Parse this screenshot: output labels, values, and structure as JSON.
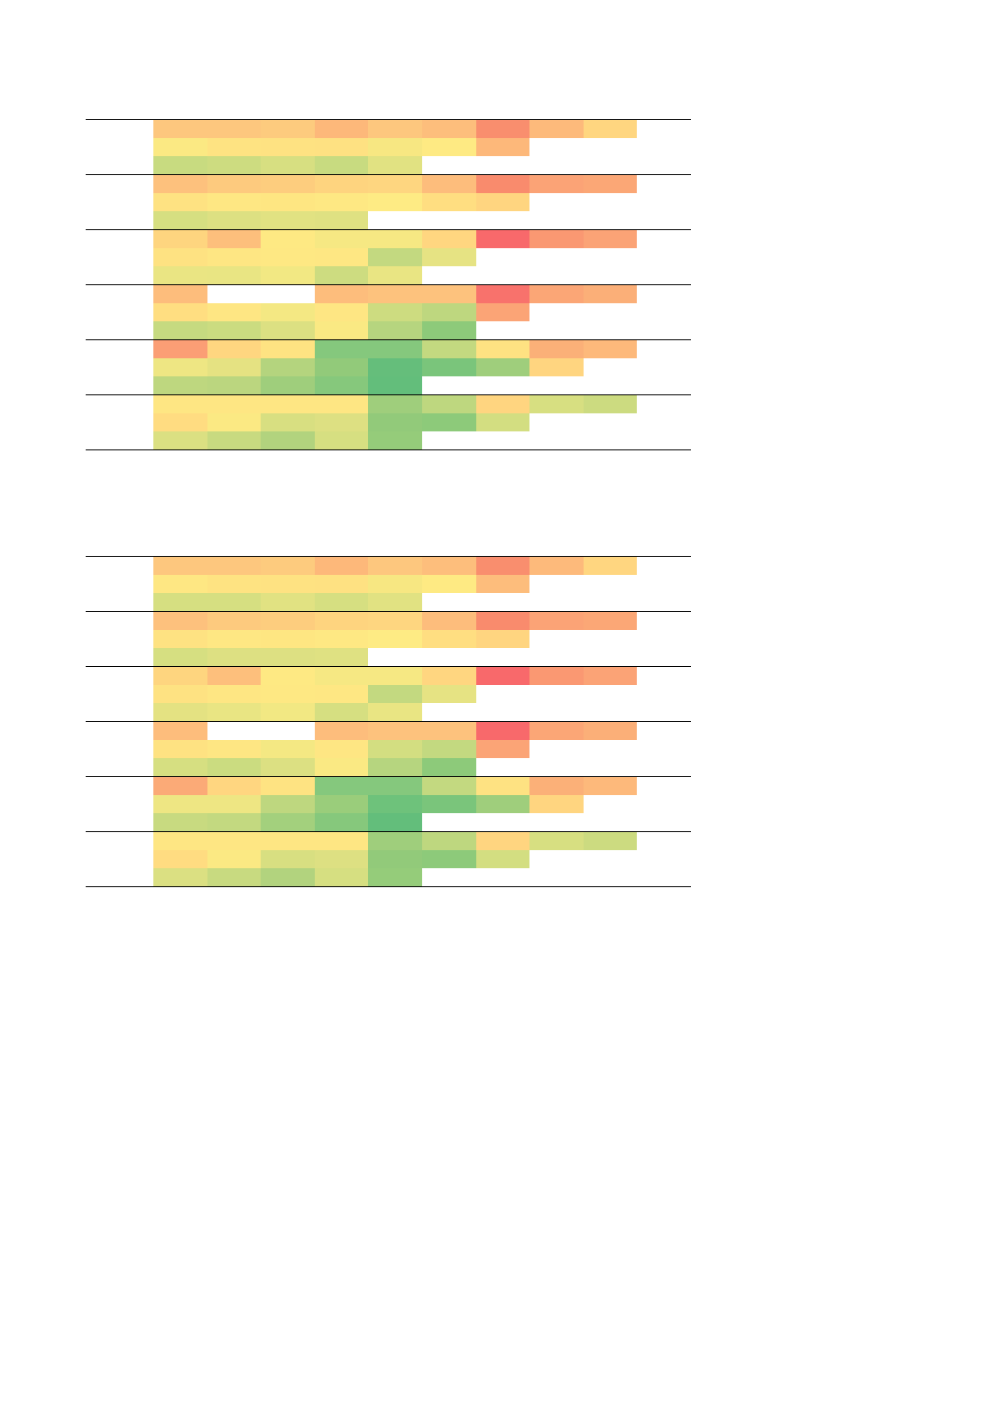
{
  "tables": [
    {
      "id": "top",
      "groups": [
        {
          "rows": [
            [
              "#FDC77E",
              "#FDC77E",
              "#FDCB7E",
              "#FDB87A",
              "#FDC77E",
              "#FDBE7C",
              "#F98E6E",
              "#FDBA7B",
              "#FFD680"
            ],
            [
              "#FBE983",
              "#FEE382",
              "#FEE282",
              "#FEE182",
              "#F7E782",
              "#FEEA83",
              "#FDB87A"
            ],
            [
              "#C8DB80",
              "#CDDC80",
              "#D7DF81",
              "#C8DB80",
              "#E1E282"
            ]
          ]
        },
        {
          "rows": [
            [
              "#FDC17D",
              "#FDCA7E",
              "#FDCD7E",
              "#FED47F",
              "#FED680",
              "#FDBD7C",
              "#F98B6D",
              "#FBA376",
              "#FBA776"
            ],
            [
              "#FEE282",
              "#FEE783",
              "#FEE682",
              "#FEE883",
              "#FEEB84",
              "#FFDE81",
              "#FFD580"
            ],
            [
              "#D6DF81",
              "#DDE082",
              "#E1E282",
              "#DFE182"
            ]
          ]
        },
        {
          "rows": [
            [
              "#FED57F",
              "#FDBF7C",
              "#FEE983",
              "#F6E883",
              "#F6E883",
              "#FFD680",
              "#F8696B",
              "#FA9872",
              "#FBA376"
            ],
            [
              "#FEE282",
              "#FEE683",
              "#FEE883",
              "#FEE783",
              "#C3D980",
              "#E6E383"
            ],
            [
              "#EAE583",
              "#E9E583",
              "#F2E883",
              "#CDDC80",
              "#E9E583"
            ]
          ]
        },
        {
          "rows": [
            [
              "#FDBD7C",
              null,
              null,
              "#FDBD7C",
              "#FDC27D",
              "#FDC27D",
              "#F8726C",
              "#FBA676",
              "#FBAF78"
            ],
            [
              "#FFDE81",
              "#FEE683",
              "#F4E883",
              "#FEE683",
              "#CDDC80",
              "#BED77F",
              "#FBA476"
            ],
            [
              "#C6DA80",
              "#CBDC80",
              "#DCE082",
              "#FAE983",
              "#B6D57F",
              "#8DCA7A"
            ]
          ]
        },
        {
          "rows": [
            [
              "#FB9E75",
              "#FFD680",
              "#FEE382",
              "#85C87D",
              "#85C87D",
              "#C3D980",
              "#FEE282",
              "#FBB078",
              "#FDB97B"
            ],
            [
              "#EEE683",
              "#E5E282",
              "#B4D47E",
              "#92CA7A",
              "#65BE7B",
              "#7AC57B",
              "#9FCE7C",
              "#FFD580"
            ],
            [
              "#BED77F",
              "#BBD67F",
              "#9FCE7C",
              "#86C87C",
              "#63BE7B"
            ]
          ]
        },
        {
          "rows": [
            [
              "#FEE683",
              "#FEE683",
              "#FEE683",
              "#FEE683",
              "#9FCE7C",
              "#BED77F",
              "#FFD580",
              "#D7DF81",
              "#CCDB80"
            ],
            [
              "#FFDC81",
              "#FBE983",
              "#D8DF81",
              "#DDE082",
              "#92CA7A",
              "#8DCA7A",
              "#D3DE81"
            ],
            [
              "#DBE082",
              "#C8DA80",
              "#B2D37E",
              "#D6DF81",
              "#95CC7A"
            ]
          ]
        }
      ]
    },
    {
      "id": "bottom",
      "groups": [
        {
          "rows": [
            [
              "#FDC77E",
              "#FDC77E",
              "#FDCB7E",
              "#FDB87A",
              "#FDC77E",
              "#FDBE7C",
              "#F98E6E",
              "#FDBA7B",
              "#FFD680"
            ],
            [
              "#FEE783",
              "#FEE382",
              "#FEE282",
              "#FEE182",
              "#F7E782",
              "#FEEA83",
              "#FDBD7C"
            ],
            [
              "#D6DF81",
              "#D6DF81",
              "#E1E282",
              "#D6DF81",
              "#E1E282"
            ]
          ]
        },
        {
          "rows": [
            [
              "#FDC17D",
              "#FDCA7E",
              "#FDCD7E",
              "#FED47F",
              "#FED680",
              "#FDBD7C",
              "#F98B6D",
              "#FBA376",
              "#FBA776"
            ],
            [
              "#FEE282",
              "#FEE783",
              "#FEE682",
              "#FEE883",
              "#FEEB84",
              "#FFDE81",
              "#FFD580"
            ],
            [
              "#D6DF81",
              "#DDE082",
              "#DDE082",
              "#DFE182"
            ]
          ]
        },
        {
          "rows": [
            [
              "#FED57F",
              "#FDBF7C",
              "#FEE983",
              "#F6E883",
              "#F6E883",
              "#FFD680",
              "#F8696B",
              "#FA9872",
              "#FBA376"
            ],
            [
              "#FEE282",
              "#FEE683",
              "#FEE883",
              "#FEE783",
              "#C3D980",
              "#E6E383"
            ],
            [
              "#E4E282",
              "#E9E583",
              "#F2E883",
              "#D6DF81",
              "#E9E583"
            ]
          ]
        },
        {
          "rows": [
            [
              "#FDBD7C",
              null,
              null,
              "#FDBD7C",
              "#FDC27D",
              "#FDC27D",
              "#F8696B",
              "#FBA676",
              "#FBAF78"
            ],
            [
              "#FEE282",
              "#FEE683",
              "#F4E883",
              "#FEE683",
              "#D3DE81",
              "#C3D980",
              "#FBA476"
            ],
            [
              "#D6DF81",
              "#CBDC80",
              "#DCE082",
              "#FAE983",
              "#B6D57F",
              "#8DCA7A"
            ]
          ]
        },
        {
          "rows": [
            [
              "#FBAA77",
              "#FFD680",
              "#FEE382",
              "#85C87D",
              "#85C87D",
              "#C3D980",
              "#FEE282",
              "#FBB078",
              "#FDB97B"
            ],
            [
              "#EEE683",
              "#EEE683",
              "#BED77F",
              "#9ACD7B",
              "#6EC27B",
              "#7AC57B",
              "#9FCE7C",
              "#FFD580"
            ],
            [
              "#C8DA80",
              "#C3D980",
              "#A3D07D",
              "#86C87C",
              "#63BE7B"
            ]
          ]
        },
        {
          "rows": [
            [
              "#FEE683",
              "#FEE683",
              "#FEE683",
              "#FEE683",
              "#9FCE7C",
              "#BED77F",
              "#FFD580",
              "#D7DF81",
              "#CCDB80"
            ],
            [
              "#FFDC81",
              "#FBE983",
              "#D8DF81",
              "#DDE082",
              "#92CA7A",
              "#8DCA7A",
              "#D3DE81"
            ],
            [
              "#DBE082",
              "#C8DA80",
              "#B2D37E",
              "#D6DF81",
              "#95CC7A"
            ]
          ]
        }
      ]
    }
  ]
}
